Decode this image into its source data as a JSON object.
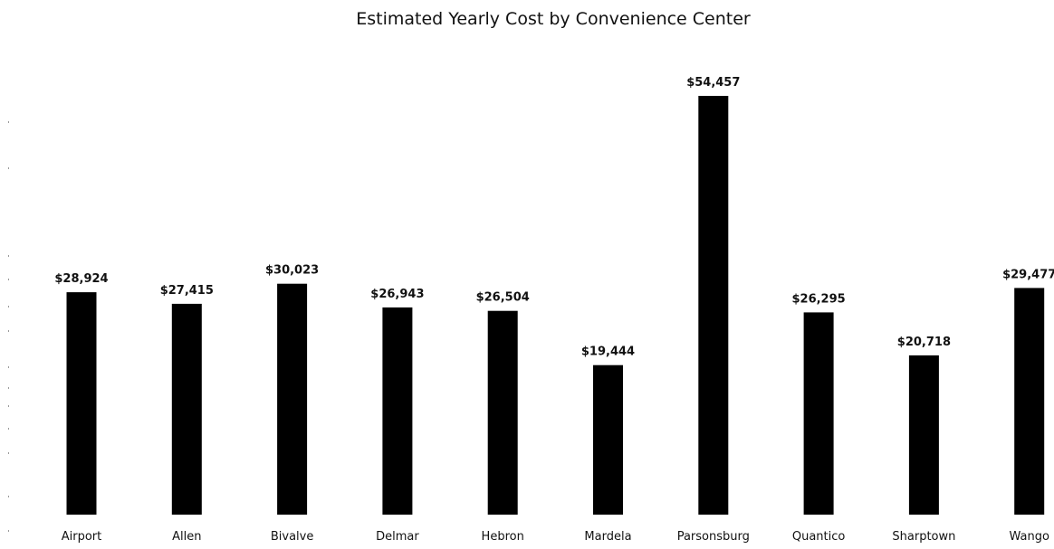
{
  "chart_data": {
    "type": "bar",
    "title": "Estimated Yearly Cost by Convenience Center",
    "xlabel": "",
    "ylabel": "",
    "categories": [
      "Airport",
      "Allen",
      "Bivalve",
      "Delmar",
      "Hebron",
      "Mardela",
      "Parsonsburg",
      "Quantico",
      "Sharptown",
      "Wango"
    ],
    "values": [
      28924,
      27415,
      30023,
      26943,
      26504,
      19444,
      54457,
      26295,
      20718,
      29477
    ],
    "data_labels": [
      "$28,924",
      "$27,415",
      "$30,023",
      "$26,943",
      "$26,504",
      "$19,444",
      "$54,457",
      "$26,295",
      "$20,718",
      "$29,477"
    ],
    "ylim": [
      0,
      54457
    ],
    "grid": false,
    "legend": "none",
    "bar_color": "#000000"
  }
}
